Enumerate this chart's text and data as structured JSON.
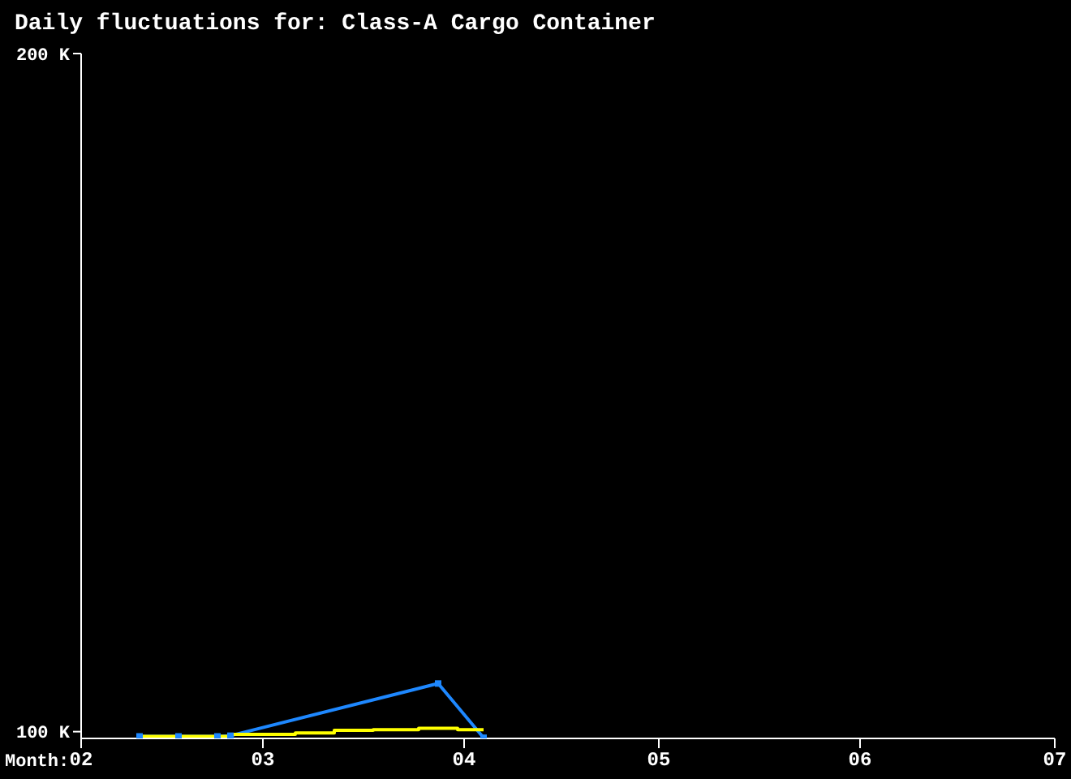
{
  "chart_data": {
    "type": "line",
    "title": "Daily fluctuations for: Class-A Cargo Container",
    "xlabel": "Month:",
    "xlim": [
      "--02-01",
      "--07-01"
    ],
    "xticks": [
      {
        "value": "--02-01",
        "label": "02"
      },
      {
        "value": "--03-01",
        "label": "03"
      },
      {
        "value": "--04-01",
        "label": "04"
      },
      {
        "value": "--05-01",
        "label": "05"
      },
      {
        "value": "--06-01",
        "label": "06"
      },
      {
        "value": "--07-01",
        "label": "07"
      }
    ],
    "ylim": [
      99000,
      200000
    ],
    "yticks": [
      {
        "value": 100000,
        "label": "100 K"
      },
      {
        "value": 200000,
        "label": "200 K"
      }
    ],
    "series": [
      {
        "type": "line",
        "color": "#1e88ff",
        "marker": "square",
        "x": [
          "--02-10",
          "--02-16",
          "--02-22",
          "--02-24",
          "--03-28",
          "--04-04"
        ],
        "values": [
          99300,
          99300,
          99300,
          99400,
          107100,
          99100
        ]
      },
      {
        "type": "step",
        "color": "#ffff00",
        "marker": "none",
        "x": [
          "--02-10",
          "--02-24",
          "--03-06",
          "--03-12",
          "--03-18",
          "--03-25",
          "--03-31",
          "--04-04"
        ],
        "values": [
          99300,
          99600,
          99800,
          100200,
          100300,
          100500,
          100300,
          100300
        ]
      }
    ]
  }
}
